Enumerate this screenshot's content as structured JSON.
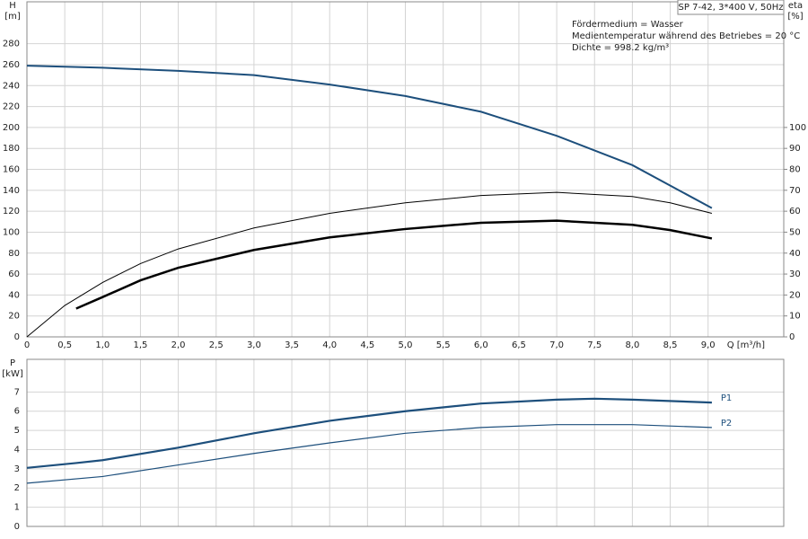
{
  "chart_data": [
    {
      "type": "line",
      "title": "SP 7-42, 3*400 V, 50Hz",
      "annotations": [
        "Fördermedium = Wasser",
        "Medientemperatur während des Betriebes = 20 °C",
        "Dichte = 998.2 kg/m³"
      ],
      "ylabel": "H",
      "yunit": "[m]",
      "y2label": "eta",
      "y2unit": "[%]",
      "xlabel": "Q [m³/h]",
      "xlim": [
        0,
        10
      ],
      "ylim": [
        0,
        320
      ],
      "y2lim": [
        0,
        160
      ],
      "grid": true,
      "xticks": [
        0,
        {
          "value": 0.5,
          "label": "0,5"
        },
        {
          "value": 1,
          "label": "1,0"
        },
        {
          "value": 1.5,
          "label": "1,5"
        },
        {
          "value": 2,
          "label": "2,0"
        },
        {
          "value": 2.5,
          "label": "2,5"
        },
        {
          "value": 3,
          "label": "3,0"
        },
        {
          "value": 3.5,
          "label": "3,5"
        },
        {
          "value": 4,
          "label": "4,0"
        },
        {
          "value": 4.5,
          "label": "4,5"
        },
        {
          "value": 5,
          "label": "5,0"
        },
        {
          "value": 5.5,
          "label": "5,5"
        },
        {
          "value": 6,
          "label": "6,0"
        },
        {
          "value": 6.5,
          "label": "6,5"
        },
        {
          "value": 7,
          "label": "7,0"
        },
        {
          "value": 7.5,
          "label": "7,5"
        },
        {
          "value": 8,
          "label": "8,0"
        },
        {
          "value": 8.5,
          "label": "8,5"
        },
        {
          "value": 9,
          "label": "9,0"
        }
      ],
      "yticks": [
        0,
        20,
        40,
        60,
        80,
        100,
        120,
        140,
        160,
        180,
        200,
        220,
        240,
        260,
        280
      ],
      "y2ticks": [
        0,
        10,
        20,
        30,
        40,
        50,
        60,
        70,
        80,
        90,
        100
      ],
      "series": [
        {
          "color": "#1d4f7c",
          "x": [
            0,
            1,
            2,
            3,
            4,
            5,
            6,
            7,
            8,
            9.05
          ],
          "values": [
            259,
            257,
            254,
            250,
            241,
            230,
            215,
            192,
            164,
            123
          ]
        },
        {
          "color": "#000000",
          "axis": "y2",
          "x": [
            0,
            0.5,
            1,
            1.5,
            2,
            3,
            4,
            5,
            6,
            7,
            8,
            8.5,
            9.05
          ],
          "values": [
            0,
            15,
            26,
            35,
            42,
            52,
            59,
            64,
            67.5,
            69,
            67,
            64,
            59
          ]
        },
        {
          "color": "#000000",
          "axis": "y2",
          "x": [
            0.65,
            1,
            1.5,
            2,
            3,
            4,
            5,
            6,
            7,
            8,
            8.5,
            9.05
          ],
          "values": [
            13.5,
            19,
            27,
            33,
            41.5,
            47.5,
            51.5,
            54.5,
            55.5,
            53.5,
            51,
            47
          ]
        }
      ]
    },
    {
      "type": "line",
      "ylabel": "P",
      "yunit": "[kW]",
      "xlim": [
        0,
        10
      ],
      "ylim": [
        0,
        8.7
      ],
      "grid": true,
      "xticks": [
        0,
        0.5,
        1,
        1.5,
        2,
        2.5,
        3,
        3.5,
        4,
        4.5,
        5,
        5.5,
        6,
        6.5,
        7,
        7.5,
        8,
        8.5,
        9
      ],
      "yticks": [
        0,
        1,
        2,
        3,
        4,
        5,
        6,
        7
      ],
      "series": [
        {
          "name": "P1",
          "color": "#1d4f7c",
          "x": [
            0,
            0.65,
            1,
            2,
            3,
            4,
            5,
            6,
            7,
            7.5,
            8,
            9.05
          ],
          "values": [
            3.05,
            3.3,
            3.45,
            4.1,
            4.85,
            5.5,
            6.0,
            6.4,
            6.6,
            6.65,
            6.6,
            6.45
          ]
        },
        {
          "name": "P2",
          "color": "#1d4f7c",
          "x": [
            0,
            1,
            2,
            3,
            4,
            5,
            6,
            7,
            8,
            9.05
          ],
          "values": [
            2.25,
            2.6,
            3.2,
            3.8,
            4.35,
            4.85,
            5.15,
            5.3,
            5.3,
            5.15
          ]
        }
      ]
    }
  ]
}
